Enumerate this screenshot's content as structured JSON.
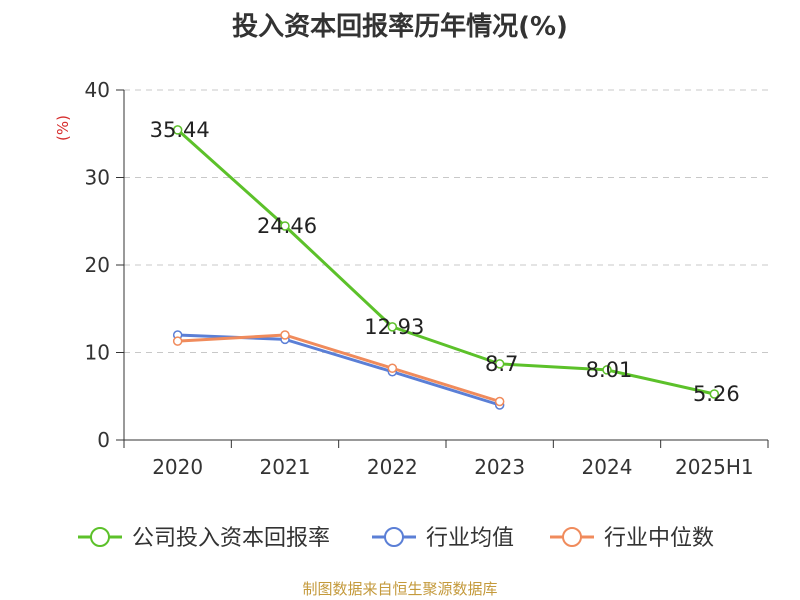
{
  "title": "投入资本回报率历年情况(%)",
  "source": "制图数据来自恒生聚源数据库",
  "chart_data": {
    "type": "line",
    "title": "投入资本回报率历年情况(%)",
    "ylabel": "(%)",
    "xlabel": "",
    "ylim": [
      0,
      40
    ],
    "yticks": [
      0,
      10,
      20,
      30,
      40
    ],
    "grid": true,
    "legend_position": "bottom",
    "categories": [
      "2020",
      "2021",
      "2022",
      "2023",
      "2024",
      "2025H1"
    ],
    "series": [
      {
        "name": "公司投入资本回报率",
        "color": "#5cc12a",
        "values": [
          35.44,
          24.46,
          12.93,
          8.7,
          8.01,
          5.26
        ],
        "labels": [
          "35.44",
          "24.46",
          "12.93",
          "8.7",
          "8.01",
          "5.26"
        ]
      },
      {
        "name": "行业均值",
        "color": "#5b7fd6",
        "values": [
          12.0,
          11.5,
          7.8,
          4.0,
          null,
          null
        ]
      },
      {
        "name": "行业中位数",
        "color": "#f08b5c",
        "values": [
          11.3,
          12.0,
          8.2,
          4.4,
          null,
          null
        ]
      }
    ]
  }
}
